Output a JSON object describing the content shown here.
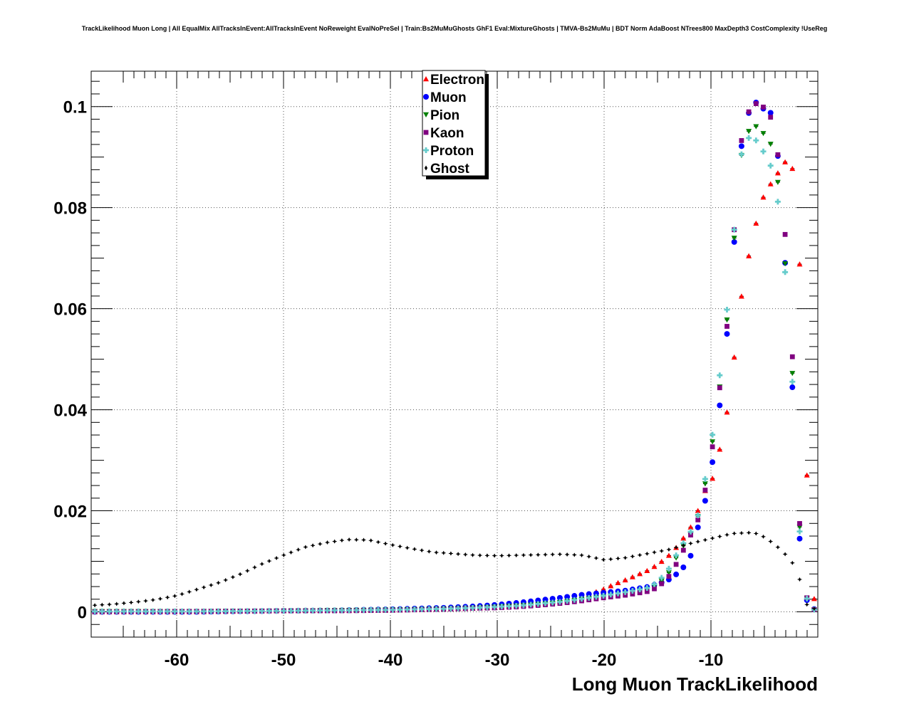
{
  "chart_data": {
    "type": "scatter",
    "title": "TrackLikelihood Muon Long | All EqualMix AllTracksInEvent:AllTracksInEvent NoReweight EvalNoPreSel | Train:Bs2MuMuGhosts GhF1 Eval:MixtureGhosts | TMVA-Bs2MuMu | BDT Norm AdaBoost NTrees800 MaxDepth3 CostComplexity !UseReg",
    "xlabel": "Long Muon TrackLikelihood",
    "ylabel": "",
    "xlim": [
      -68,
      0
    ],
    "ylim": [
      -0.005,
      0.107
    ],
    "grid": true,
    "legend_position": "top-center",
    "x_ticks": [
      -60,
      -50,
      -40,
      -30,
      -20,
      -10
    ],
    "x_tick_labels": [
      "-60",
      "-50",
      "-40",
      "-30",
      "-20",
      "-10"
    ],
    "y_ticks": [
      0,
      0.02,
      0.04,
      0.06,
      0.08,
      0.1
    ],
    "y_tick_labels": [
      "0",
      "0.02",
      "0.04",
      "0.06",
      "0.08",
      "0.1"
    ],
    "bin_width": 0.68,
    "series": [
      {
        "name": "Electron",
        "color": "#ff0000",
        "marker": "triangle-up",
        "points": [
          [
            -67.7,
            0
          ],
          [
            -58,
            0
          ],
          [
            -50,
            0.0002
          ],
          [
            -45,
            0.0003
          ],
          [
            -40,
            0.0003
          ],
          [
            -35,
            0.0005
          ],
          [
            -32,
            0.0007
          ],
          [
            -30,
            0.0009
          ],
          [
            -28,
            0.0012
          ],
          [
            -26,
            0.0016
          ],
          [
            -24,
            0.0022
          ],
          [
            -22,
            0.003
          ],
          [
            -20,
            0.0045
          ],
          [
            -19,
            0.0055
          ],
          [
            -18,
            0.0063
          ],
          [
            -17,
            0.0072
          ],
          [
            -16,
            0.0081
          ],
          [
            -15,
            0.0093
          ],
          [
            -14,
            0.011
          ],
          [
            -13,
            0.0133
          ],
          [
            -12,
            0.0163
          ],
          [
            -11.5,
            0.0185
          ],
          [
            -11,
            0.0212
          ],
          [
            -10.5,
            0.0242
          ],
          [
            -10,
            0.0253
          ],
          [
            -9.5,
            0.0292
          ],
          [
            -9,
            0.0338
          ],
          [
            -8.5,
            0.0395
          ],
          [
            -8,
            0.047
          ],
          [
            -7.5,
            0.0564
          ],
          [
            -7,
            0.0648
          ],
          [
            -6,
            0.0752
          ],
          [
            -5,
            0.0828
          ],
          [
            -4,
            0.086
          ],
          [
            -3,
            0.0892
          ],
          [
            -2,
            0.0868
          ],
          [
            -1.5,
            0.0568
          ],
          [
            -1,
            0.0258
          ],
          [
            -0.5,
            0.0037
          ],
          [
            0,
            0.0002
          ]
        ]
      },
      {
        "name": "Muon",
        "color": "#0000ff",
        "marker": "circle",
        "points": [
          [
            -67.7,
            0
          ],
          [
            -58,
            0
          ],
          [
            -50,
            0.0002
          ],
          [
            -45,
            0.0003
          ],
          [
            -40,
            0.0005
          ],
          [
            -35,
            0.0008
          ],
          [
            -32,
            0.0011
          ],
          [
            -30,
            0.0014
          ],
          [
            -28,
            0.0018
          ],
          [
            -26,
            0.0023
          ],
          [
            -24,
            0.0028
          ],
          [
            -22,
            0.0034
          ],
          [
            -20,
            0.0038
          ],
          [
            -18,
            0.0042
          ],
          [
            -16,
            0.0049
          ],
          [
            -15,
            0.0055
          ],
          [
            -14,
            0.0063
          ],
          [
            -13,
            0.0078
          ],
          [
            -12,
            0.0102
          ],
          [
            -11.5,
            0.0147
          ],
          [
            -11,
            0.0183
          ],
          [
            -10.5,
            0.0223
          ],
          [
            -10,
            0.0275
          ],
          [
            -9.5,
            0.0351
          ],
          [
            -9,
            0.0441
          ],
          [
            -8.5,
            0.055
          ],
          [
            -8,
            0.0678
          ],
          [
            -7.5,
            0.0828
          ],
          [
            -7,
            0.0958
          ],
          [
            -6,
            0.1012
          ],
          [
            -5,
            0.0994
          ],
          [
            -4,
            0.0983
          ],
          [
            -3,
            0.0672
          ],
          [
            -2,
            0.0305
          ],
          [
            -1.5,
            0.0038
          ],
          [
            -0.5,
            0.0007
          ],
          [
            0,
            0.0002
          ]
        ]
      },
      {
        "name": "Pion",
        "color": "#008000",
        "marker": "triangle-down",
        "points": [
          [
            -67.7,
            0.0001
          ],
          [
            -58,
            0.0001
          ],
          [
            -50,
            0.0002
          ],
          [
            -45,
            0.0003
          ],
          [
            -40,
            0.0004
          ],
          [
            -35,
            0.0006
          ],
          [
            -32,
            0.0008
          ],
          [
            -30,
            0.001
          ],
          [
            -28,
            0.0012
          ],
          [
            -26,
            0.0015
          ],
          [
            -24,
            0.0019
          ],
          [
            -22,
            0.0025
          ],
          [
            -20,
            0.003
          ],
          [
            -18,
            0.0036
          ],
          [
            -16,
            0.0044
          ],
          [
            -15,
            0.0053
          ],
          [
            -14,
            0.0075
          ],
          [
            -13,
            0.0118
          ],
          [
            -12,
            0.0148
          ],
          [
            -11.5,
            0.017
          ],
          [
            -11,
            0.0204
          ],
          [
            -10.5,
            0.0258
          ],
          [
            -10,
            0.0315
          ],
          [
            -9.5,
            0.0393
          ],
          [
            -9,
            0.0475
          ],
          [
            -8.5,
            0.0578
          ],
          [
            -8,
            0.0693
          ],
          [
            -7.5,
            0.0823
          ],
          [
            -7,
            0.0935
          ],
          [
            -6,
            0.0965
          ],
          [
            -5,
            0.0945
          ],
          [
            -4,
            0.0912
          ],
          [
            -3,
            0.0675
          ],
          [
            -2,
            0.0348
          ],
          [
            -1.5,
            0.0048
          ],
          [
            -0.5,
            0.0005
          ],
          [
            0,
            0.0001
          ]
        ]
      },
      {
        "name": "Kaon",
        "color": "#800080",
        "marker": "square",
        "points": [
          [
            -67.7,
            0
          ],
          [
            -58,
            0.0001
          ],
          [
            -50,
            0.0002
          ],
          [
            -45,
            0.0002
          ],
          [
            -40,
            0.0003
          ],
          [
            -35,
            0.0005
          ],
          [
            -32,
            0.0007
          ],
          [
            -30,
            0.0008
          ],
          [
            -28,
            0.001
          ],
          [
            -26,
            0.0013
          ],
          [
            -24,
            0.0017
          ],
          [
            -22,
            0.0022
          ],
          [
            -20,
            0.0028
          ],
          [
            -18,
            0.0033
          ],
          [
            -16,
            0.004
          ],
          [
            -15,
            0.0048
          ],
          [
            -14,
            0.0068
          ],
          [
            -13,
            0.0103
          ],
          [
            -12,
            0.0148
          ],
          [
            -11.5,
            0.0168
          ],
          [
            -11,
            0.0193
          ],
          [
            -10.5,
            0.0245
          ],
          [
            -10,
            0.0305
          ],
          [
            -9.5,
            0.0382
          ],
          [
            -9,
            0.0478
          ],
          [
            -8.5,
            0.0565
          ],
          [
            -8,
            0.0708
          ],
          [
            -7.5,
            0.0842
          ],
          [
            -7,
            0.0968
          ],
          [
            -6,
            0.1008
          ],
          [
            -5,
            0.0998
          ],
          [
            -4,
            0.0965
          ],
          [
            -3,
            0.0733
          ],
          [
            -2,
            0.0365
          ],
          [
            -1.5,
            0.0048
          ],
          [
            -0.5,
            0.0006
          ],
          [
            0,
            0.0001
          ]
        ]
      },
      {
        "name": "Proton",
        "color": "#66cccc",
        "marker": "cross",
        "points": [
          [
            -67.7,
            0.0001
          ],
          [
            -58,
            0.0001
          ],
          [
            -50,
            0.0002
          ],
          [
            -45,
            0.0003
          ],
          [
            -40,
            0.0004
          ],
          [
            -35,
            0.0006
          ],
          [
            -32,
            0.0008
          ],
          [
            -30,
            0.001
          ],
          [
            -28,
            0.0012
          ],
          [
            -26,
            0.0016
          ],
          [
            -24,
            0.002
          ],
          [
            -22,
            0.0026
          ],
          [
            -20,
            0.0032
          ],
          [
            -18,
            0.0039
          ],
          [
            -16,
            0.0047
          ],
          [
            -15,
            0.0058
          ],
          [
            -14,
            0.0083
          ],
          [
            -13,
            0.0122
          ],
          [
            -12,
            0.0155
          ],
          [
            -11.5,
            0.0173
          ],
          [
            -11,
            0.0205
          ],
          [
            -10.5,
            0.0268
          ],
          [
            -10,
            0.0328
          ],
          [
            -9.5,
            0.0408
          ],
          [
            -9,
            0.0502
          ],
          [
            -8.5,
            0.0598
          ],
          [
            -8,
            0.0715
          ],
          [
            -7.5,
            0.083
          ],
          [
            -7,
            0.0935
          ],
          [
            -6,
            0.094
          ],
          [
            -5,
            0.0908
          ],
          [
            -4,
            0.0865
          ],
          [
            -3,
            0.066
          ],
          [
            -2,
            0.033
          ],
          [
            -1.5,
            0.0045
          ],
          [
            -0.5,
            0.0006
          ],
          [
            0,
            0.0001
          ]
        ]
      },
      {
        "name": "Ghost",
        "color": "#000000",
        "marker": "diamond",
        "points": [
          [
            -67.7,
            0.0013
          ],
          [
            -66,
            0.0015
          ],
          [
            -64,
            0.0019
          ],
          [
            -62,
            0.0024
          ],
          [
            -60,
            0.0032
          ],
          [
            -58,
            0.0045
          ],
          [
            -56,
            0.0058
          ],
          [
            -54,
            0.0075
          ],
          [
            -52,
            0.0095
          ],
          [
            -50,
            0.0112
          ],
          [
            -48,
            0.0128
          ],
          [
            -46,
            0.0137
          ],
          [
            -44,
            0.0143
          ],
          [
            -42,
            0.0142
          ],
          [
            -40,
            0.0133
          ],
          [
            -38,
            0.0125
          ],
          [
            -36,
            0.0118
          ],
          [
            -34,
            0.0115
          ],
          [
            -32,
            0.0112
          ],
          [
            -30,
            0.0111
          ],
          [
            -28,
            0.0112
          ],
          [
            -26,
            0.0113
          ],
          [
            -24,
            0.0114
          ],
          [
            -22,
            0.0112
          ],
          [
            -20,
            0.0103
          ],
          [
            -18,
            0.0107
          ],
          [
            -16,
            0.0115
          ],
          [
            -14,
            0.0123
          ],
          [
            -12,
            0.0135
          ],
          [
            -10,
            0.0145
          ],
          [
            -8,
            0.0155
          ],
          [
            -6,
            0.0157
          ],
          [
            -5,
            0.0148
          ],
          [
            -4,
            0.0133
          ],
          [
            -3,
            0.0113
          ],
          [
            -2,
            0.0087
          ],
          [
            -1.5,
            0.0049
          ],
          [
            -1,
            0.0013
          ],
          [
            0,
            0.0003
          ]
        ]
      }
    ]
  }
}
